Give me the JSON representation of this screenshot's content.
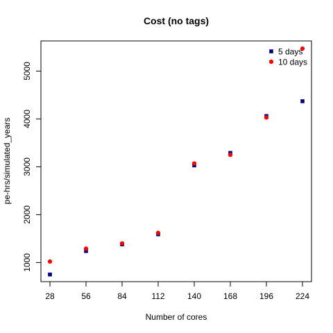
{
  "chart_data": {
    "type": "scatter",
    "title": "Cost (no tags)",
    "xlabel": "Number of cores",
    "ylabel": "pe-hrs/simulated_years",
    "x_ticks": [
      "28",
      "56",
      "84",
      "112",
      "140",
      "168",
      "196",
      "224"
    ],
    "y_ticks": [
      "1000",
      "2000",
      "3000",
      "4000",
      "5000"
    ],
    "xlim": [
      21,
      231
    ],
    "ylim": [
      600,
      5630
    ],
    "grid": false,
    "legend_position": "top-right",
    "series": [
      {
        "name": "5 days",
        "marker": "square",
        "color": "#00008b",
        "points": [
          [
            28,
            750
          ],
          [
            56,
            1240
          ],
          [
            84,
            1380
          ],
          [
            112,
            1590
          ],
          [
            140,
            3030
          ],
          [
            168,
            3290
          ],
          [
            196,
            4060
          ],
          [
            224,
            4370
          ]
        ]
      },
      {
        "name": "10 days",
        "marker": "circle",
        "color": "#ff0000",
        "points": [
          [
            28,
            1020
          ],
          [
            56,
            1290
          ],
          [
            84,
            1400
          ],
          [
            112,
            1620
          ],
          [
            140,
            3070
          ],
          [
            168,
            3250
          ],
          [
            196,
            4030
          ],
          [
            224,
            5470
          ]
        ]
      }
    ]
  }
}
